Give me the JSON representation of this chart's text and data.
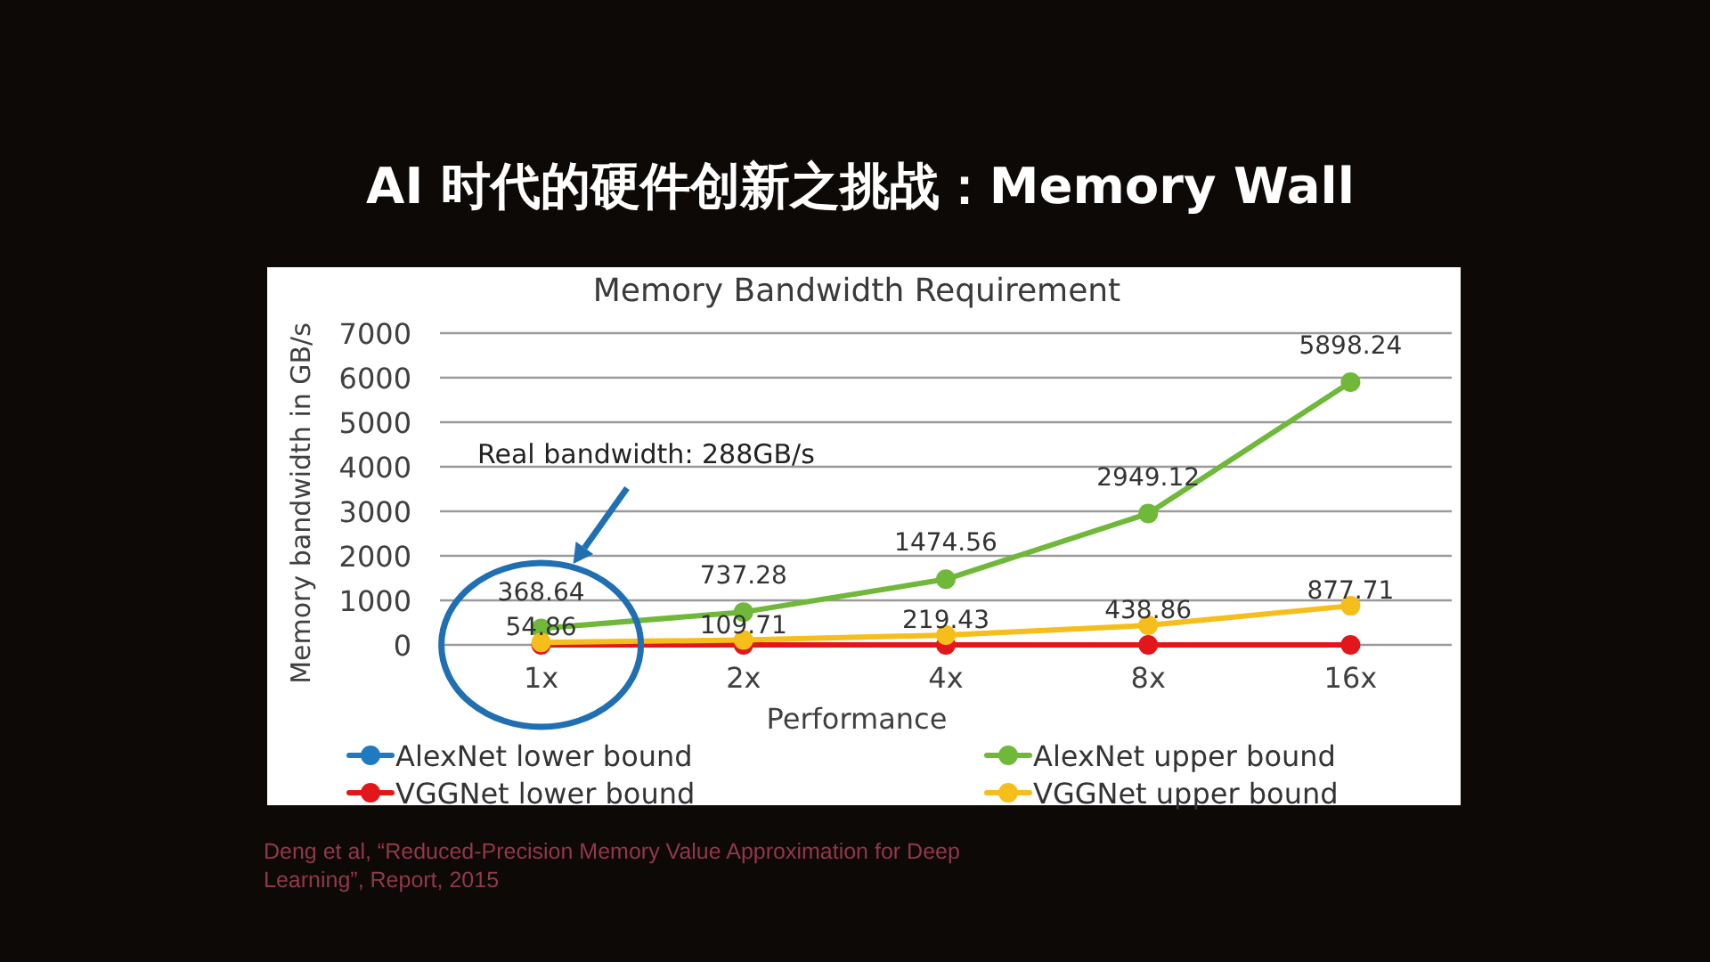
{
  "chart_data": {
    "type": "line",
    "title": "AI 时代的硬件创新之挑战：Memory Wall",
    "subtitle": "Memory Bandwidth Requirement",
    "xlabel": "Performance",
    "ylabel": "Memory bandwidth in GB/s",
    "categories": [
      "1x",
      "2x",
      "4x",
      "8x",
      "16x"
    ],
    "series": [
      {
        "name": "AlexNet lower bound",
        "color": "#1f7ac2",
        "values": [
          null,
          null,
          null,
          null,
          null
        ]
      },
      {
        "name": "AlexNet upper bound",
        "color": "#6fb83a",
        "values": [
          368.64,
          737.28,
          1474.56,
          2949.12,
          5898.24
        ],
        "value_labels": [
          "368.64",
          "737.28",
          "1474.56",
          "2949.12",
          "5898.24"
        ]
      },
      {
        "name": "VGGNet lower bound",
        "color": "#e3161b",
        "values": [
          0,
          0,
          0,
          0,
          0
        ]
      },
      {
        "name": "VGGNet upper bound",
        "color": "#f5be1a",
        "values": [
          54.86,
          109.71,
          219.43,
          438.86,
          877.71
        ],
        "value_labels": [
          "54.86",
          "109.71",
          "219.43",
          "438.86",
          "877.71"
        ]
      }
    ],
    "ylim": [
      0,
      7000
    ],
    "yticks": [
      0,
      1000,
      2000,
      3000,
      4000,
      5000,
      6000,
      7000
    ],
    "grid": "y",
    "legend": "bottom",
    "marker": "circle",
    "line_style": "solid",
    "annotations": [
      "Real bandwidth: 288GB/s",
      "Deng et al, “Reduced-Precision Memory Value Approximation for Deep Learning”, Report, 2015"
    ]
  }
}
